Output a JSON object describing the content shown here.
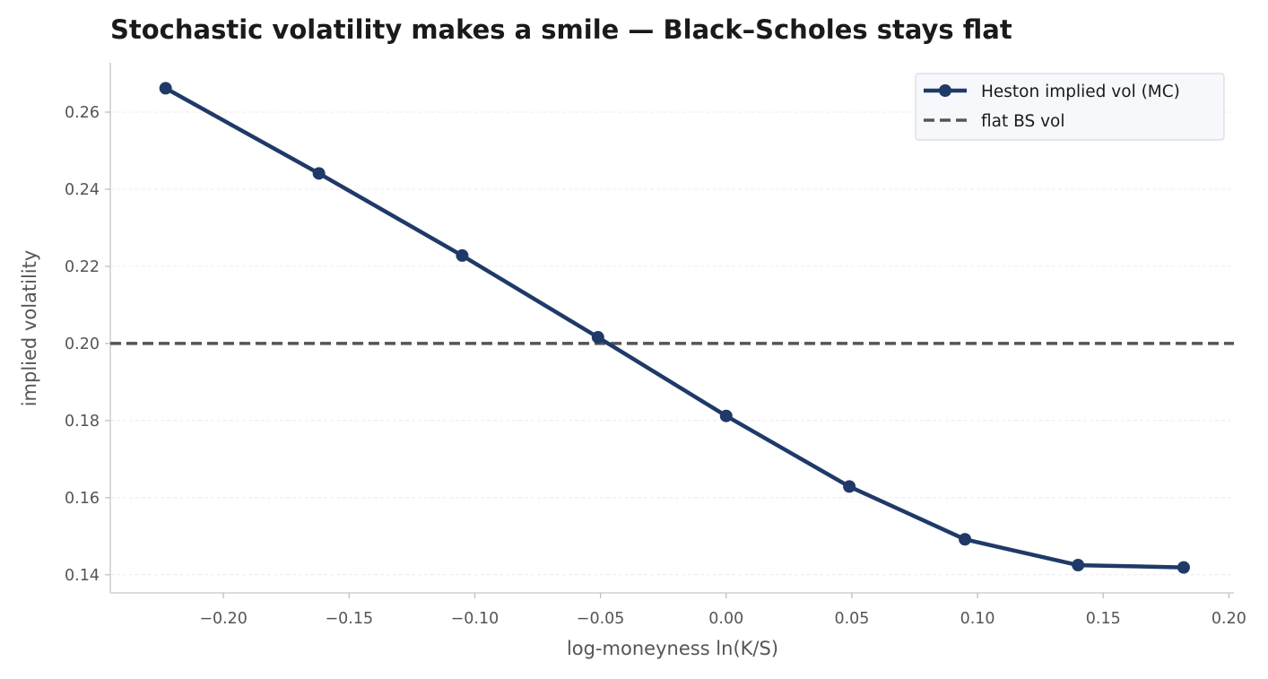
{
  "chart_data": {
    "type": "line",
    "title": "Stochastic volatility makes a smile — Black–Scholes stays flat",
    "xlabel": "log-moneyness ln(K/S)",
    "ylabel": "implied volatility",
    "xlim": [
      -0.245,
      0.202
    ],
    "ylim": [
      0.1353,
      0.2728
    ],
    "x_ticks": [
      -0.2,
      -0.15,
      -0.1,
      -0.05,
      0.0,
      0.05,
      0.1,
      0.15,
      0.2
    ],
    "x_tick_labels": [
      "−0.20",
      "−0.15",
      "−0.10",
      "−0.05",
      "0.00",
      "0.05",
      "0.10",
      "0.15",
      "0.20"
    ],
    "y_ticks": [
      0.14,
      0.16,
      0.18,
      0.2,
      0.22,
      0.24,
      0.26
    ],
    "y_tick_labels": [
      "0.14",
      "0.16",
      "0.18",
      "0.20",
      "0.22",
      "0.24",
      "0.26"
    ],
    "grid": "horizontal, dashed, faint",
    "legend_position": "top-right",
    "series": [
      {
        "name": "Heston implied vol (MC)",
        "style": "solid line with circle markers",
        "color": "#1f3a68",
        "x": [
          -0.223,
          -0.162,
          -0.105,
          -0.051,
          0.0,
          0.049,
          0.095,
          0.14,
          0.182
        ],
        "y": [
          0.2662,
          0.2441,
          0.2228,
          0.2016,
          0.1812,
          0.1629,
          0.1492,
          0.1425,
          0.1419
        ]
      },
      {
        "name": "flat BS vol",
        "style": "dashed horizontal line",
        "color": "#555555",
        "y": 0.2
      }
    ]
  }
}
